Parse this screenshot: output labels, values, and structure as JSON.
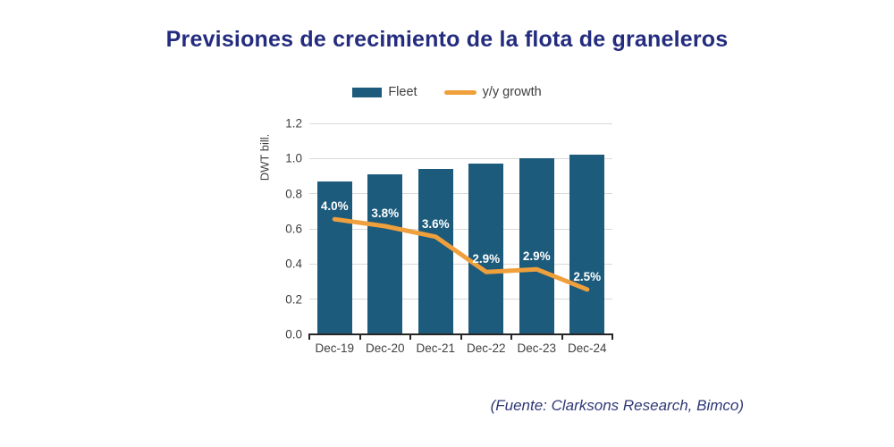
{
  "title": {
    "text": "Previsiones de crecimiento de la flota de graneleros",
    "color": "#232c7e"
  },
  "source_note": {
    "text": "(Fuente: Clarksons Research, Bimco)",
    "color": "#2f3876"
  },
  "chart_data": {
    "type": "bar+line combo",
    "title": "Previsiones de crecimiento de la flota de graneleros",
    "categories": [
      "Dec-19",
      "Dec-20",
      "Dec-21",
      "Dec-22",
      "Dec-23",
      "Dec-24"
    ],
    "series": [
      {
        "name": "Fleet",
        "type": "bar",
        "color": "#1d5b7c",
        "values": [
          0.87,
          0.91,
          0.94,
          0.97,
          1.0,
          1.02
        ]
      },
      {
        "name": "y/y growth",
        "type": "line",
        "color": "#efa03c",
        "values_percent": [
          4.0,
          3.8,
          3.6,
          2.9,
          2.9,
          2.5
        ],
        "point_labels": [
          "4.0%",
          "3.8%",
          "3.6%",
          "2.9%",
          "2.9%",
          "2.5%"
        ],
        "plotted_on_left_axis": [
          0.655,
          0.615,
          0.555,
          0.355,
          0.37,
          0.255
        ]
      }
    ],
    "xlabel": "",
    "ylabel": "DWT bill.",
    "ylim": [
      0,
      1.2
    ],
    "ytick_labels": [
      "0.0",
      "0.2",
      "0.4",
      "0.6",
      "0.8",
      "1.0",
      "1.2"
    ],
    "grid": true,
    "legend_position": "top",
    "colors": {
      "grid": "#d9d9d9",
      "axis": "#262626",
      "tick_text": "#404040",
      "bar_label_text": "#ffffff"
    }
  }
}
